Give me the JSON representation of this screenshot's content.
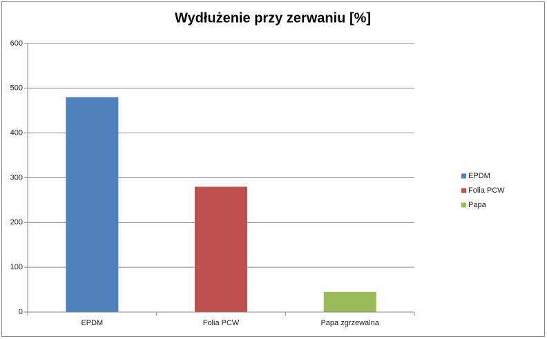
{
  "chart_data": {
    "type": "bar",
    "title": "Wydłużenie przy zerwaniu [%]",
    "categories": [
      "EPDM",
      "Folia PCW",
      "Papa zgrzewalna"
    ],
    "values": [
      480,
      280,
      45
    ],
    "colors": [
      "#4f81bd",
      "#c0504d",
      "#9bbb59"
    ],
    "legend": [
      "EPDM",
      "Folia PCW",
      "Papa"
    ],
    "legend_position": "right",
    "ylim": [
      0,
      600
    ],
    "yticks": [
      0,
      100,
      200,
      300,
      400,
      500,
      600
    ],
    "grid": true
  }
}
